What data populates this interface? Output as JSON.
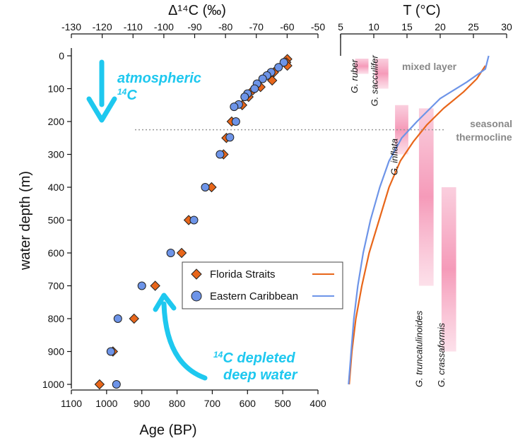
{
  "chart_data": [
    {
      "type": "scatter",
      "ylabel": "water depth (m)",
      "xlabel_bottom": "Age (BP)",
      "xlabel_top": "Δ¹⁴C (‰)",
      "ylim": [
        0,
        1000
      ],
      "y_ticks": [
        0,
        100,
        200,
        300,
        400,
        500,
        600,
        700,
        800,
        900,
        1000
      ],
      "bottom_axis": {
        "range": [
          1100,
          400
        ],
        "ticks": [
          1100,
          1000,
          900,
          800,
          700,
          600,
          500,
          400
        ]
      },
      "top_axis": {
        "range": [
          -130,
          -50
        ],
        "ticks": [
          -130,
          -120,
          -110,
          -100,
          -90,
          -80,
          -70,
          -60,
          -50
        ]
      },
      "series": [
        {
          "name": "Florida Straits",
          "marker": "diamond",
          "color": "#e8661a",
          "points": [
            {
              "age": 487,
              "depth": 10
            },
            {
              "age": 490,
              "depth": 20
            },
            {
              "age": 487,
              "depth": 30
            },
            {
              "age": 525,
              "depth": 50
            },
            {
              "age": 530,
              "depth": 75
            },
            {
              "age": 563,
              "depth": 95
            },
            {
              "age": 585,
              "depth": 105
            },
            {
              "age": 597,
              "depth": 125
            },
            {
              "age": 615,
              "depth": 150
            },
            {
              "age": 645,
              "depth": 200
            },
            {
              "age": 660,
              "depth": 250
            },
            {
              "age": 668,
              "depth": 300
            },
            {
              "age": 702,
              "depth": 400
            },
            {
              "age": 767,
              "depth": 500
            },
            {
              "age": 787,
              "depth": 600
            },
            {
              "age": 862,
              "depth": 700
            },
            {
              "age": 922,
              "depth": 800
            },
            {
              "age": 982,
              "depth": 900
            },
            {
              "age": 1020,
              "depth": 1000
            }
          ]
        },
        {
          "name": "Eastern Caribbean",
          "marker": "circle",
          "color": "#6d94e8",
          "points": [
            {
              "age": 497,
              "depth": 20
            },
            {
              "age": 512,
              "depth": 35
            },
            {
              "age": 533,
              "depth": 50
            },
            {
              "age": 545,
              "depth": 60
            },
            {
              "age": 557,
              "depth": 70
            },
            {
              "age": 573,
              "depth": 85
            },
            {
              "age": 580,
              "depth": 100
            },
            {
              "age": 600,
              "depth": 115
            },
            {
              "age": 608,
              "depth": 125
            },
            {
              "age": 625,
              "depth": 148
            },
            {
              "age": 638,
              "depth": 155
            },
            {
              "age": 633,
              "depth": 200
            },
            {
              "age": 650,
              "depth": 248
            },
            {
              "age": 678,
              "depth": 300
            },
            {
              "age": 720,
              "depth": 400
            },
            {
              "age": 752,
              "depth": 500
            },
            {
              "age": 818,
              "depth": 600
            },
            {
              "age": 900,
              "depth": 700
            },
            {
              "age": 968,
              "depth": 800
            },
            {
              "age": 988,
              "depth": 900
            },
            {
              "age": 972,
              "depth": 1000
            }
          ]
        }
      ],
      "annotations": [
        {
          "text": "atmospheric",
          "text_sup": "14",
          "text_tail": "C"
        },
        {
          "text_sup": "14",
          "text": "C depleted",
          "text_line2": "deep water"
        }
      ],
      "legend": {
        "position": "center-right",
        "entries": [
          "Florida Straits",
          "Eastern Caribbean"
        ]
      }
    },
    {
      "type": "line",
      "xlabel_top": "T (°C)",
      "xlim": [
        5,
        30
      ],
      "x_ticks": [
        5,
        10,
        15,
        20,
        25,
        30
      ],
      "ylim": [
        0,
        1000
      ],
      "series": [
        {
          "name": "Florida Straits",
          "color": "#e8661a",
          "points": [
            {
              "t": 26.8,
              "depth": 30
            },
            {
              "t": 25.5,
              "depth": 70
            },
            {
              "t": 23.5,
              "depth": 110
            },
            {
              "t": 20.5,
              "depth": 160
            },
            {
              "t": 18.0,
              "depth": 210
            },
            {
              "t": 16.0,
              "depth": 260
            },
            {
              "t": 14.0,
              "depth": 320
            },
            {
              "t": 12.3,
              "depth": 400
            },
            {
              "t": 10.8,
              "depth": 500
            },
            {
              "t": 9.3,
              "depth": 600
            },
            {
              "t": 8.2,
              "depth": 700
            },
            {
              "t": 7.3,
              "depth": 800
            },
            {
              "t": 6.7,
              "depth": 900
            },
            {
              "t": 6.3,
              "depth": 1000
            }
          ]
        },
        {
          "name": "Eastern Caribbean",
          "color": "#6d94e8",
          "points": [
            {
              "t": 27.3,
              "depth": 0
            },
            {
              "t": 26.8,
              "depth": 40
            },
            {
              "t": 24.0,
              "depth": 80
            },
            {
              "t": 20.0,
              "depth": 130
            },
            {
              "t": 16.5,
              "depth": 200
            },
            {
              "t": 14.2,
              "depth": 250
            },
            {
              "t": 12.3,
              "depth": 320
            },
            {
              "t": 10.9,
              "depth": 400
            },
            {
              "t": 9.5,
              "depth": 500
            },
            {
              "t": 8.4,
              "depth": 600
            },
            {
              "t": 7.6,
              "depth": 700
            },
            {
              "t": 7.0,
              "depth": 800
            },
            {
              "t": 6.6,
              "depth": 900
            },
            {
              "t": 6.2,
              "depth": 1000
            }
          ]
        }
      ],
      "species_bands": [
        {
          "name": "G. ruber",
          "t_range": [
            7.2,
            9.2
          ],
          "depth_range": [
            0,
            55
          ],
          "label_depth": 105
        },
        {
          "name": "G. sacculifer",
          "t_range": [
            10.2,
            12.2
          ],
          "depth_range": [
            0,
            100
          ],
          "label_depth": 145
        },
        {
          "name": "G. inflata",
          "t_range": [
            13.2,
            15.2
          ],
          "depth_range": [
            150,
            300
          ],
          "label_depth": 355
        },
        {
          "name": "G. truncatulinoides",
          "t_range": [
            16.8,
            19.0
          ],
          "depth_range": [
            160,
            700
          ],
          "label_depth": 1000
        },
        {
          "name": "G. crassaformis",
          "t_range": [
            20.2,
            22.4
          ],
          "depth_range": [
            400,
            900
          ],
          "label_depth": 1000
        }
      ],
      "region_labels": [
        {
          "text": "mixed layer"
        },
        {
          "line1": "seasonal",
          "line2": "thermocline"
        }
      ],
      "reference_line": {
        "depth": 225,
        "style": "dotted"
      }
    }
  ]
}
